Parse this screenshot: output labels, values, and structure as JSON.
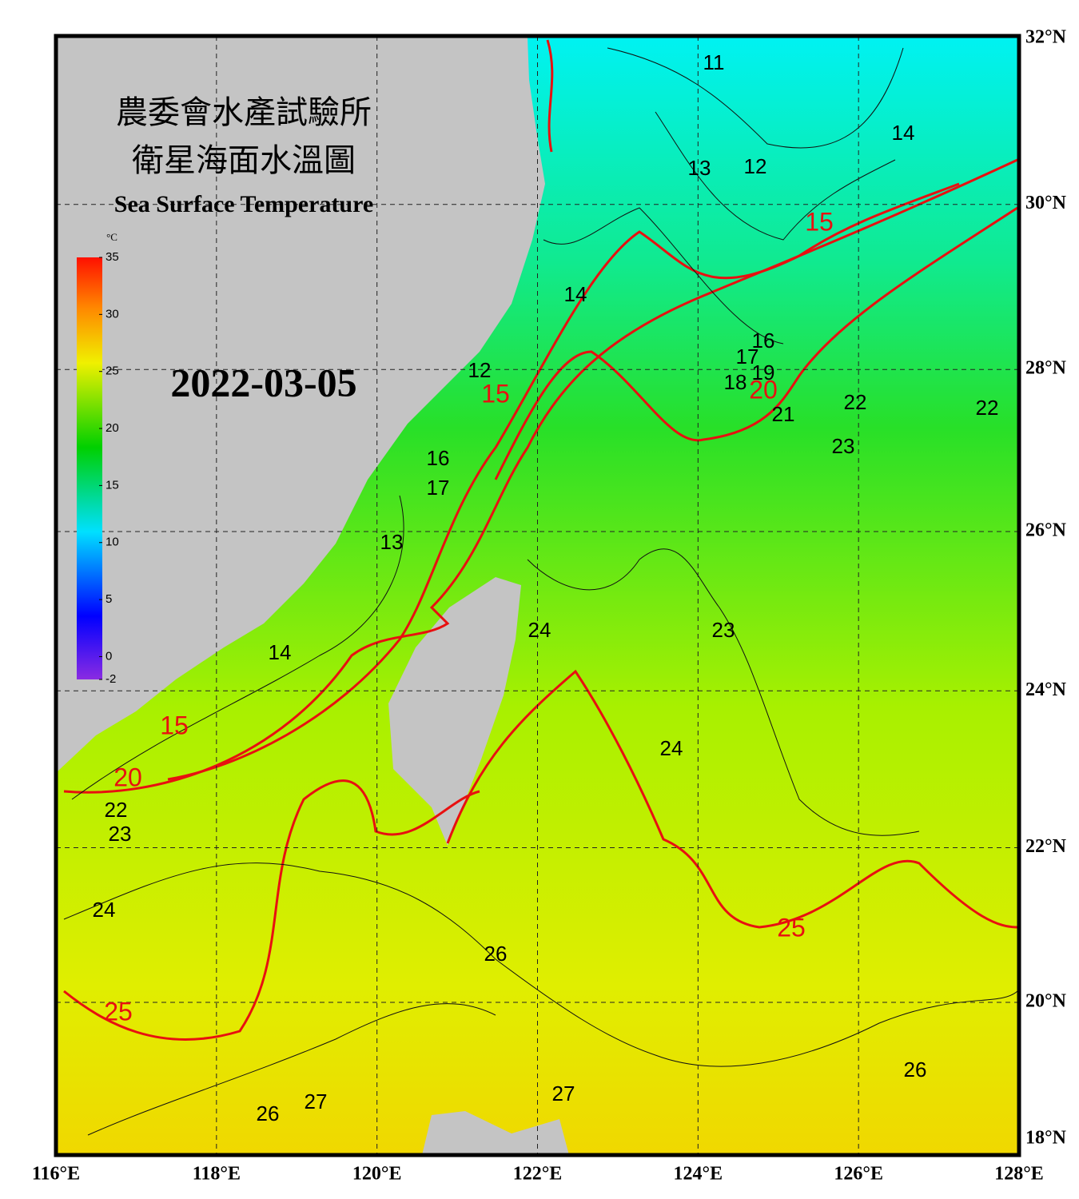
{
  "header": {
    "title_zh_1": "農委會水產試驗所",
    "title_zh_2": "衛星海面水溫圖",
    "title_en": "Sea Surface Temperature",
    "date": "2022-03-05"
  },
  "colorbar": {
    "unit": "°C",
    "lim": [
      -2,
      35
    ],
    "ticks": [
      35,
      30,
      25,
      20,
      15,
      10,
      5,
      0,
      -2
    ]
  },
  "axes": {
    "xlim": [
      116,
      128
    ],
    "ylim": [
      18,
      32
    ],
    "xticks": [
      {
        "value": 116,
        "label": "116°E"
      },
      {
        "value": 118,
        "label": "118°E"
      },
      {
        "value": 120,
        "label": "120°E"
      },
      {
        "value": 122,
        "label": "122°E"
      },
      {
        "value": 124,
        "label": "124°E"
      },
      {
        "value": 126,
        "label": "126°E"
      },
      {
        "value": 128,
        "label": "128°E"
      }
    ],
    "yticks": [
      {
        "value": 32,
        "label": "32°N"
      },
      {
        "value": 30,
        "label": "30°N"
      },
      {
        "value": 28,
        "label": "28°N"
      },
      {
        "value": 26,
        "label": "26°N"
      },
      {
        "value": 24,
        "label": "24°N"
      },
      {
        "value": 22,
        "label": "22°N"
      },
      {
        "value": 20,
        "label": "20°N"
      },
      {
        "value": 18,
        "label": "18°N"
      }
    ]
  },
  "contour_labels": {
    "red": [
      15,
      15,
      15,
      20,
      20,
      25,
      25
    ],
    "black": [
      11,
      12,
      13,
      14,
      14,
      12,
      16,
      17,
      18,
      19,
      21,
      22,
      22,
      23,
      13,
      16,
      17,
      14,
      24,
      23,
      24,
      24,
      23,
      22,
      26,
      26,
      27,
      27,
      26
    ]
  }
}
